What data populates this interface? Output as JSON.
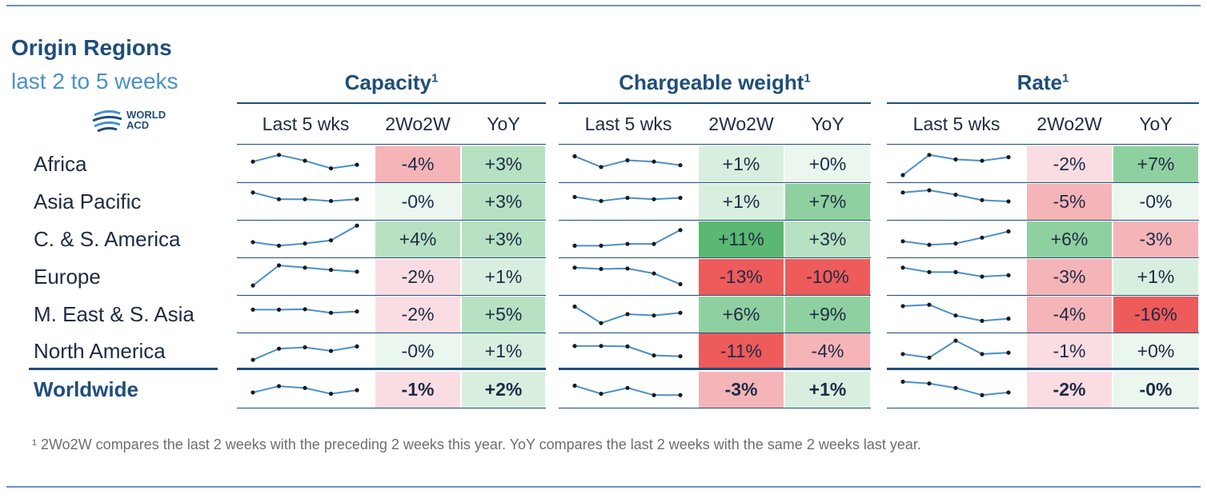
{
  "title": "Origin Regions",
  "subtitle": "last 2 to 5 weeks",
  "logo": {
    "line1": "WORLD",
    "line2": "ACD",
    "icon": "globe-swoosh-icon",
    "colors": [
      "#1f4e79",
      "#4a90c8"
    ]
  },
  "colors": {
    "header": "#1f4e79",
    "sparkline": "#4a90c8",
    "positive_scale": [
      "#eaf6ee",
      "#d8efdf",
      "#b7e1c2",
      "#8fd0a0",
      "#5bb872"
    ],
    "negative_scale": [
      "#fbeef1",
      "#f9dde2",
      "#f5b5b8",
      "#f28a8a",
      "#ee5b5b"
    ]
  },
  "groups": [
    {
      "id": "capacity",
      "label": "Capacity",
      "sup": "1"
    },
    {
      "id": "weight",
      "label": "Chargeable weight",
      "sup": "1"
    },
    {
      "id": "rate",
      "label": "Rate",
      "sup": "1"
    }
  ],
  "column_headers": {
    "trend": "Last 5 wks",
    "wow": "2Wo2W",
    "yoy": "YoY"
  },
  "footnote": "¹ 2Wo2W compares the last 2 weeks with the preceding 2 weeks this year. YoY compares the last 2 weeks with the same 2 weeks last year.",
  "chart_data": {
    "type": "table",
    "columns": [
      "Capacity 2Wo2W",
      "Capacity YoY",
      "Chargeable weight 2Wo2W",
      "Chargeable weight YoY",
      "Rate 2Wo2W",
      "Rate YoY"
    ],
    "rows": [
      {
        "region": "Africa",
        "capacity": {
          "trend": [
            3,
            4.5,
            3.2,
            1.5,
            2.3
          ],
          "wow": "-4%",
          "wow_n": -4,
          "yoy": "+3%",
          "yoy_n": 3
        },
        "weight": {
          "trend": [
            4.2,
            1.8,
            3.3,
            3,
            2.2
          ],
          "wow": "+1%",
          "wow_n": 1,
          "yoy": "+0%",
          "yoy_n": 0
        },
        "rate": {
          "trend": [
            0,
            4.5,
            3.5,
            3.2,
            4
          ],
          "wow": "-2%",
          "wow_n": -2,
          "yoy": "+7%",
          "yoy_n": 7
        }
      },
      {
        "region": "Asia Pacific",
        "capacity": {
          "trend": [
            4.5,
            3,
            3,
            2.6,
            3
          ],
          "wow": "-0%",
          "wow_n": 0,
          "yoy": "+3%",
          "yoy_n": 3
        },
        "weight": {
          "trend": [
            3.5,
            2.6,
            3.3,
            3,
            3.3
          ],
          "wow": "+1%",
          "wow_n": 1,
          "yoy": "+7%",
          "yoy_n": 7
        },
        "rate": {
          "trend": [
            4.5,
            5,
            4,
            2.8,
            2.5
          ],
          "wow": "-5%",
          "wow_n": -5,
          "yoy": "-0%",
          "yoy_n": 0
        }
      },
      {
        "region": "C. & S. America",
        "capacity": {
          "trend": [
            1.8,
            1,
            1.5,
            2.2,
            5.5
          ],
          "wow": "+4%",
          "wow_n": 4,
          "yoy": "+3%",
          "yoy_n": 3
        },
        "weight": {
          "trend": [
            1,
            1,
            1.4,
            1.4,
            4.5
          ],
          "wow": "+11%",
          "wow_n": 11,
          "yoy": "+3%",
          "yoy_n": 3
        },
        "rate": {
          "trend": [
            2,
            1.2,
            1.5,
            2.8,
            4.2
          ],
          "wow": "+6%",
          "wow_n": 6,
          "yoy": "-3%",
          "yoy_n": -3
        }
      },
      {
        "region": "Europe",
        "capacity": {
          "trend": [
            0.5,
            5,
            4.5,
            4,
            3.6
          ],
          "wow": "-2%",
          "wow_n": -2,
          "yoy": "+1%",
          "yoy_n": 1
        },
        "weight": {
          "trend": [
            4.5,
            4.2,
            4.3,
            3.2,
            0.8
          ],
          "wow": "-13%",
          "wow_n": -13,
          "yoy": "-10%",
          "yoy_n": -10
        },
        "rate": {
          "trend": [
            4.5,
            3.5,
            3.5,
            2.5,
            2.8
          ],
          "wow": "-3%",
          "wow_n": -3,
          "yoy": "+1%",
          "yoy_n": 1
        }
      },
      {
        "region": "M. East & S. Asia",
        "capacity": {
          "trend": [
            3.5,
            3.5,
            3.6,
            2.8,
            3.1
          ],
          "wow": "-2%",
          "wow_n": -2,
          "yoy": "+5%",
          "yoy_n": 5
        },
        "weight": {
          "trend": [
            4.2,
            0.5,
            2.5,
            2.2,
            2.8
          ],
          "wow": "+6%",
          "wow_n": 6,
          "yoy": "+9%",
          "yoy_n": 9
        },
        "rate": {
          "trend": [
            4.3,
            4.6,
            2.2,
            1,
            1.5
          ],
          "wow": "-4%",
          "wow_n": -4,
          "yoy": "-16%",
          "yoy_n": -16
        }
      },
      {
        "region": "North America",
        "capacity": {
          "trend": [
            0.5,
            3,
            3.3,
            2.5,
            3.5
          ],
          "wow": "-0%",
          "wow_n": 0,
          "yoy": "+1%",
          "yoy_n": 1
        },
        "weight": {
          "trend": [
            3.6,
            3.6,
            3.5,
            1.5,
            1.3
          ],
          "wow": "-11%",
          "wow_n": -11,
          "yoy": "-4%",
          "yoy_n": -4
        },
        "rate": {
          "trend": [
            1.8,
            1,
            4.8,
            1.8,
            2.1
          ],
          "wow": "-1%",
          "wow_n": -1,
          "yoy": "+0%",
          "yoy_n": 0
        }
      }
    ],
    "total": {
      "region": "Worldwide",
      "capacity": {
        "trend": [
          1.8,
          3.2,
          2.8,
          1.5,
          2.3
        ],
        "wow": "-1%",
        "wow_n": -1,
        "yoy": "+2%",
        "yoy_n": 2
      },
      "weight": {
        "trend": [
          3.3,
          1.5,
          2.8,
          1.2,
          1.2
        ],
        "wow": "-3%",
        "wow_n": -3,
        "yoy": "+1%",
        "yoy_n": 1
      },
      "rate": {
        "trend": [
          4.2,
          3.8,
          2.8,
          1.2,
          1.8
        ],
        "wow": "-2%",
        "wow_n": -2,
        "yoy": "-0%",
        "yoy_n": 0
      }
    }
  }
}
